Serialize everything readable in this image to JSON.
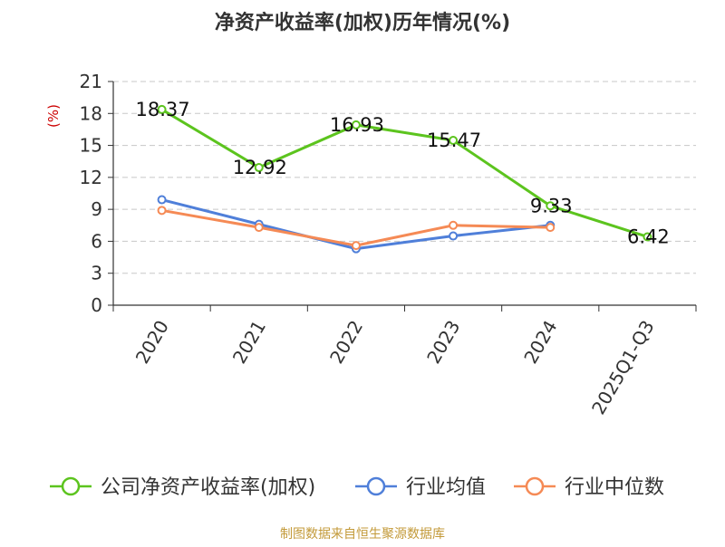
{
  "chart_data": {
    "type": "line",
    "title": "净资产收益率(加权)历年情况(%)",
    "ylabel": "(%)",
    "categories": [
      "2020",
      "2021",
      "2022",
      "2023",
      "2024",
      "2025Q1-Q3"
    ],
    "ylim": [
      0,
      21
    ],
    "yticks": [
      0,
      3,
      6,
      9,
      12,
      15,
      18,
      21
    ],
    "grid": true,
    "legend_position": "bottom",
    "series": [
      {
        "name": "公司净资产收益率(加权)",
        "color": "#5cc41e",
        "values": [
          18.37,
          12.92,
          16.93,
          15.47,
          9.33,
          6.42
        ],
        "labels": [
          "18.37",
          "12.92",
          "16.93",
          "15.47",
          "9.33",
          "6.42"
        ]
      },
      {
        "name": "行业均值",
        "color": "#4f7fd9",
        "values": [
          9.9,
          7.6,
          5.3,
          6.5,
          7.5,
          null
        ]
      },
      {
        "name": "行业中位数",
        "color": "#f58a55",
        "values": [
          8.9,
          7.3,
          5.6,
          7.5,
          7.3,
          null
        ]
      }
    ]
  },
  "footer": {
    "source": "制图数据来自恒生聚源数据库",
    "color": "#c39a3a"
  },
  "ylabel_color": "#cc0000"
}
